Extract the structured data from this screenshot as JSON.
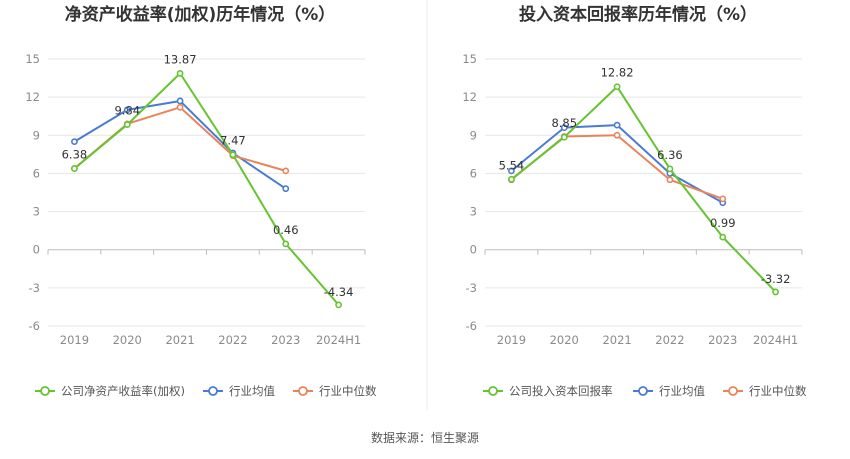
{
  "source": "数据来源：恒生聚源",
  "colors": {
    "company": "#66c430",
    "avg": "#4a7bd4",
    "median": "#e8845a"
  },
  "chart_data": [
    {
      "type": "line",
      "title": "净资产收益率(加权)历年情况（%）",
      "categories": [
        "2019",
        "2020",
        "2021",
        "2022",
        "2023",
        "2024H1"
      ],
      "ylim": [
        -6,
        15
      ],
      "yticks": [
        15,
        12,
        9,
        6,
        3,
        0,
        -3,
        -6
      ],
      "grid": true,
      "legend_position": "bottom-left",
      "series": [
        {
          "name": "公司净资产收益率(加权)",
          "key": "company",
          "values": [
            6.38,
            9.84,
            13.87,
            7.47,
            0.46,
            -4.34
          ],
          "labels": [
            "6.38",
            "9.84",
            "13.87",
            "7.47",
            "0.46",
            "-4.34"
          ]
        },
        {
          "name": "行业均值",
          "key": "avg",
          "values": [
            8.5,
            11.0,
            11.7,
            7.6,
            4.8,
            null
          ]
        },
        {
          "name": "行业中位数",
          "key": "median",
          "values": [
            6.4,
            9.9,
            11.2,
            7.4,
            6.2,
            null
          ]
        }
      ]
    },
    {
      "type": "line",
      "title": "投入资本回报率历年情况（%）",
      "categories": [
        "2019",
        "2020",
        "2021",
        "2022",
        "2023",
        "2024H1"
      ],
      "ylim": [
        -6,
        15
      ],
      "yticks": [
        15,
        12,
        9,
        6,
        3,
        0,
        -3,
        -6
      ],
      "grid": true,
      "legend_position": "bottom-left",
      "series": [
        {
          "name": "公司投入资本回报率",
          "key": "company",
          "values": [
            5.54,
            8.85,
            12.82,
            6.36,
            0.99,
            -3.32
          ],
          "labels": [
            "5.54",
            "8.85",
            "12.82",
            "6.36",
            "0.99",
            "-3.32"
          ]
        },
        {
          "name": "行业均值",
          "key": "avg",
          "values": [
            6.2,
            9.6,
            9.8,
            6.0,
            3.7,
            null
          ]
        },
        {
          "name": "行业中位数",
          "key": "median",
          "values": [
            5.5,
            8.9,
            9.0,
            5.5,
            4.0,
            null
          ]
        }
      ]
    }
  ]
}
